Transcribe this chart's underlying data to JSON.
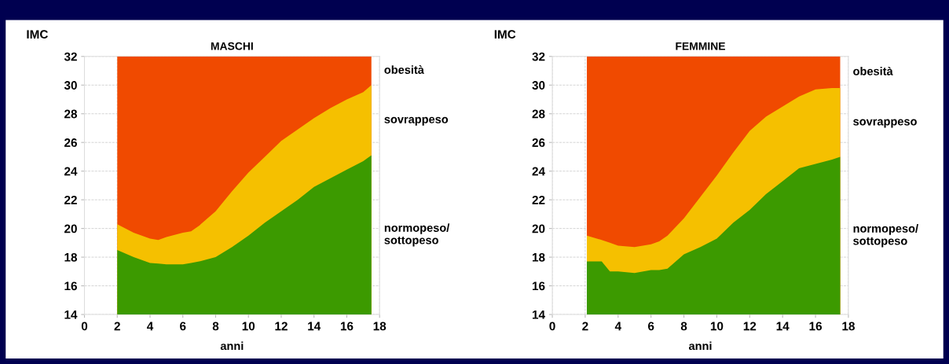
{
  "chart_data": [
    {
      "type": "area",
      "title": "MASCHI",
      "xlabel": "anni",
      "ylabel": "IMC",
      "xlim": [
        0,
        18
      ],
      "ylim": [
        14,
        32
      ],
      "xticks": [
        0,
        2,
        4,
        6,
        8,
        10,
        12,
        14,
        16,
        18
      ],
      "yticks": [
        14,
        16,
        18,
        20,
        22,
        24,
        26,
        28,
        30,
        32
      ],
      "grid": true,
      "x": [
        2,
        3,
        4,
        4.5,
        5,
        6,
        6.5,
        7,
        8,
        9,
        10,
        11,
        12,
        13,
        14,
        15,
        16,
        17,
        17.5
      ],
      "series": [
        {
          "name": "normopeso/\nsottopeso",
          "color": "#3c9a00",
          "values": [
            18.5,
            18.0,
            17.6,
            17.55,
            17.5,
            17.5,
            17.6,
            17.7,
            18.0,
            18.7,
            19.5,
            20.4,
            21.2,
            22.0,
            22.9,
            23.5,
            24.1,
            24.7,
            25.1
          ]
        },
        {
          "name": "sovrappeso",
          "color": "#f5c000",
          "values": [
            20.3,
            19.7,
            19.3,
            19.2,
            19.4,
            19.7,
            19.8,
            20.2,
            21.2,
            22.6,
            23.9,
            25.0,
            26.1,
            26.9,
            27.7,
            28.4,
            29.0,
            29.5,
            30.0
          ]
        },
        {
          "name": "obesità",
          "color": "#f04a00",
          "values": [
            32,
            32,
            32,
            32,
            32,
            32,
            32,
            32,
            32,
            32,
            32,
            32,
            32,
            32,
            32,
            32,
            32,
            32,
            32
          ]
        }
      ]
    },
    {
      "type": "area",
      "title": "FEMMINE",
      "xlabel": "anni",
      "ylabel": "IMC",
      "xlim": [
        0,
        18
      ],
      "ylim": [
        14,
        32
      ],
      "xticks": [
        0,
        2,
        4,
        6,
        8,
        10,
        12,
        14,
        16,
        18
      ],
      "yticks": [
        14,
        16,
        18,
        20,
        22,
        24,
        26,
        28,
        30,
        32
      ],
      "grid": true,
      "x": [
        2.1,
        3,
        3.5,
        4,
        5,
        6,
        6.5,
        7,
        8,
        9,
        10,
        11,
        12,
        13,
        14,
        15,
        16,
        17,
        17.5
      ],
      "series": [
        {
          "name": "normopeso/\nsottopeso",
          "color": "#3c9a00",
          "values": [
            17.7,
            17.7,
            17.0,
            17.0,
            16.9,
            17.1,
            17.1,
            17.2,
            18.2,
            18.7,
            19.3,
            20.4,
            21.3,
            22.4,
            23.3,
            24.2,
            24.5,
            24.8,
            25.0
          ]
        },
        {
          "name": "sovrappeso",
          "color": "#f5c000",
          "values": [
            19.5,
            19.2,
            19.0,
            18.8,
            18.7,
            18.9,
            19.1,
            19.5,
            20.7,
            22.2,
            23.7,
            25.3,
            26.8,
            27.8,
            28.5,
            29.2,
            29.7,
            29.8,
            29.8
          ]
        },
        {
          "name": "obesità",
          "color": "#f04a00",
          "values": [
            32,
            32,
            32,
            32,
            32,
            32,
            32,
            32,
            32,
            32,
            32,
            32,
            32,
            32,
            32,
            32,
            32,
            32,
            32
          ]
        }
      ]
    }
  ]
}
